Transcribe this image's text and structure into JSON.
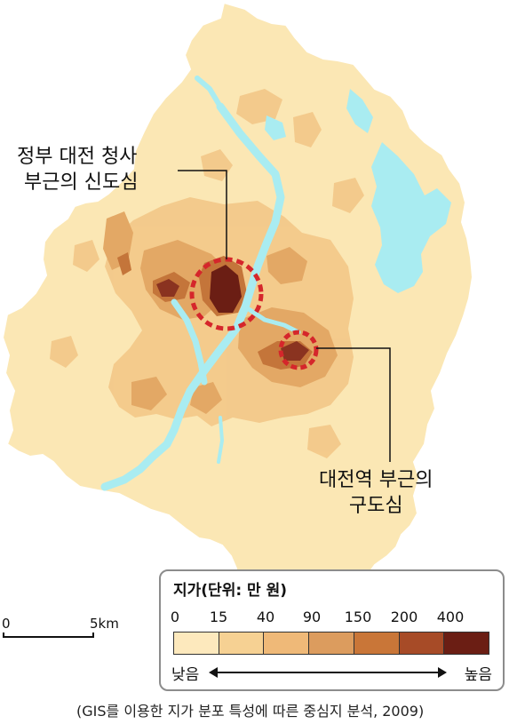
{
  "map": {
    "colors": {
      "background": "#fbe7b4",
      "water": "#a9ecf1",
      "boundary": "#ffffff",
      "highlight_circle": "#d5262b"
    }
  },
  "labels": {
    "new_center_line1": "정부 대전 청사",
    "new_center_line2": "부근의 신도심",
    "old_center_line1": "대전역 부근의",
    "old_center_line2": "구도심"
  },
  "legend": {
    "title": "지가(단위: 만 원)",
    "ticks": [
      "0",
      "15",
      "40",
      "90",
      "150",
      "200",
      "400"
    ],
    "colors": [
      "#fde9bd",
      "#f6d193",
      "#efb978",
      "#dc9c5e",
      "#c97638",
      "#a74b27",
      "#6b1e14"
    ],
    "low_label": "낮음",
    "high_label": "높음"
  },
  "scale_bar": {
    "zero": "0",
    "five": "5km"
  },
  "source": "(GIS를 이용한 지가 분포 특성에 따른 중심지 분석, 2009)"
}
